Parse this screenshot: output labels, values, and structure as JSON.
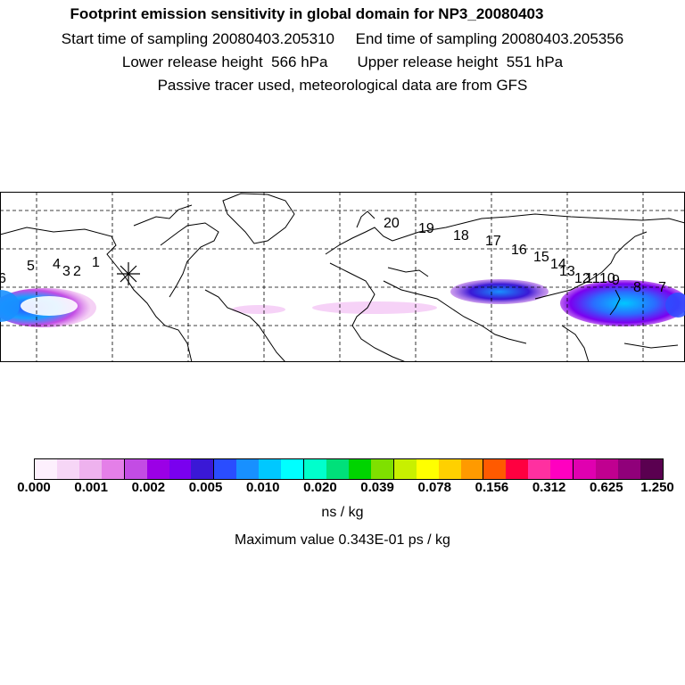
{
  "header": {
    "title": "Footprint emission sensitivity in global domain for NP3_20080403",
    "sampling_line": "Start time of sampling 20080403.205310     End time of sampling 20080403.205356",
    "height_line": "Lower release height  566 hPa       Upper release height  551 hPa",
    "tracer_line": "Passive tracer used, meteorological data are from GFS"
  },
  "map": {
    "trajectory_labels": [
      "6",
      "5",
      "4",
      "3",
      "2",
      "1",
      "20",
      "19",
      "18",
      "17",
      "16",
      "15",
      "14",
      "13",
      "12",
      "11",
      "10",
      "9",
      "8",
      "7"
    ],
    "release_marker": "release-site-star"
  },
  "legend": {
    "colors": [
      "#fdf0fd",
      "#f6d6f6",
      "#eeb2ee",
      "#e47fe8",
      "#c34ce4",
      "#9b00e6",
      "#7a00ef",
      "#3a18d6",
      "#2a4dff",
      "#1890ff",
      "#00c8ff",
      "#00ffff",
      "#00ffcc",
      "#00e07a",
      "#00d400",
      "#7fe000",
      "#c8f000",
      "#ffff00",
      "#ffd000",
      "#ff9a00",
      "#ff5a00",
      "#ff0040",
      "#ff30a0",
      "#ff00c0",
      "#e000b0",
      "#c00090",
      "#90007a",
      "#5a0050"
    ],
    "tick_labels": [
      "0.000",
      "0.001",
      "0.002",
      "0.005",
      "0.010",
      "0.020",
      "0.039",
      "0.078",
      "0.156",
      "0.312",
      "0.625",
      "1.250"
    ],
    "units": "ns / kg",
    "max_value_text": "Maximum value  0.343E-01 ps / kg"
  }
}
